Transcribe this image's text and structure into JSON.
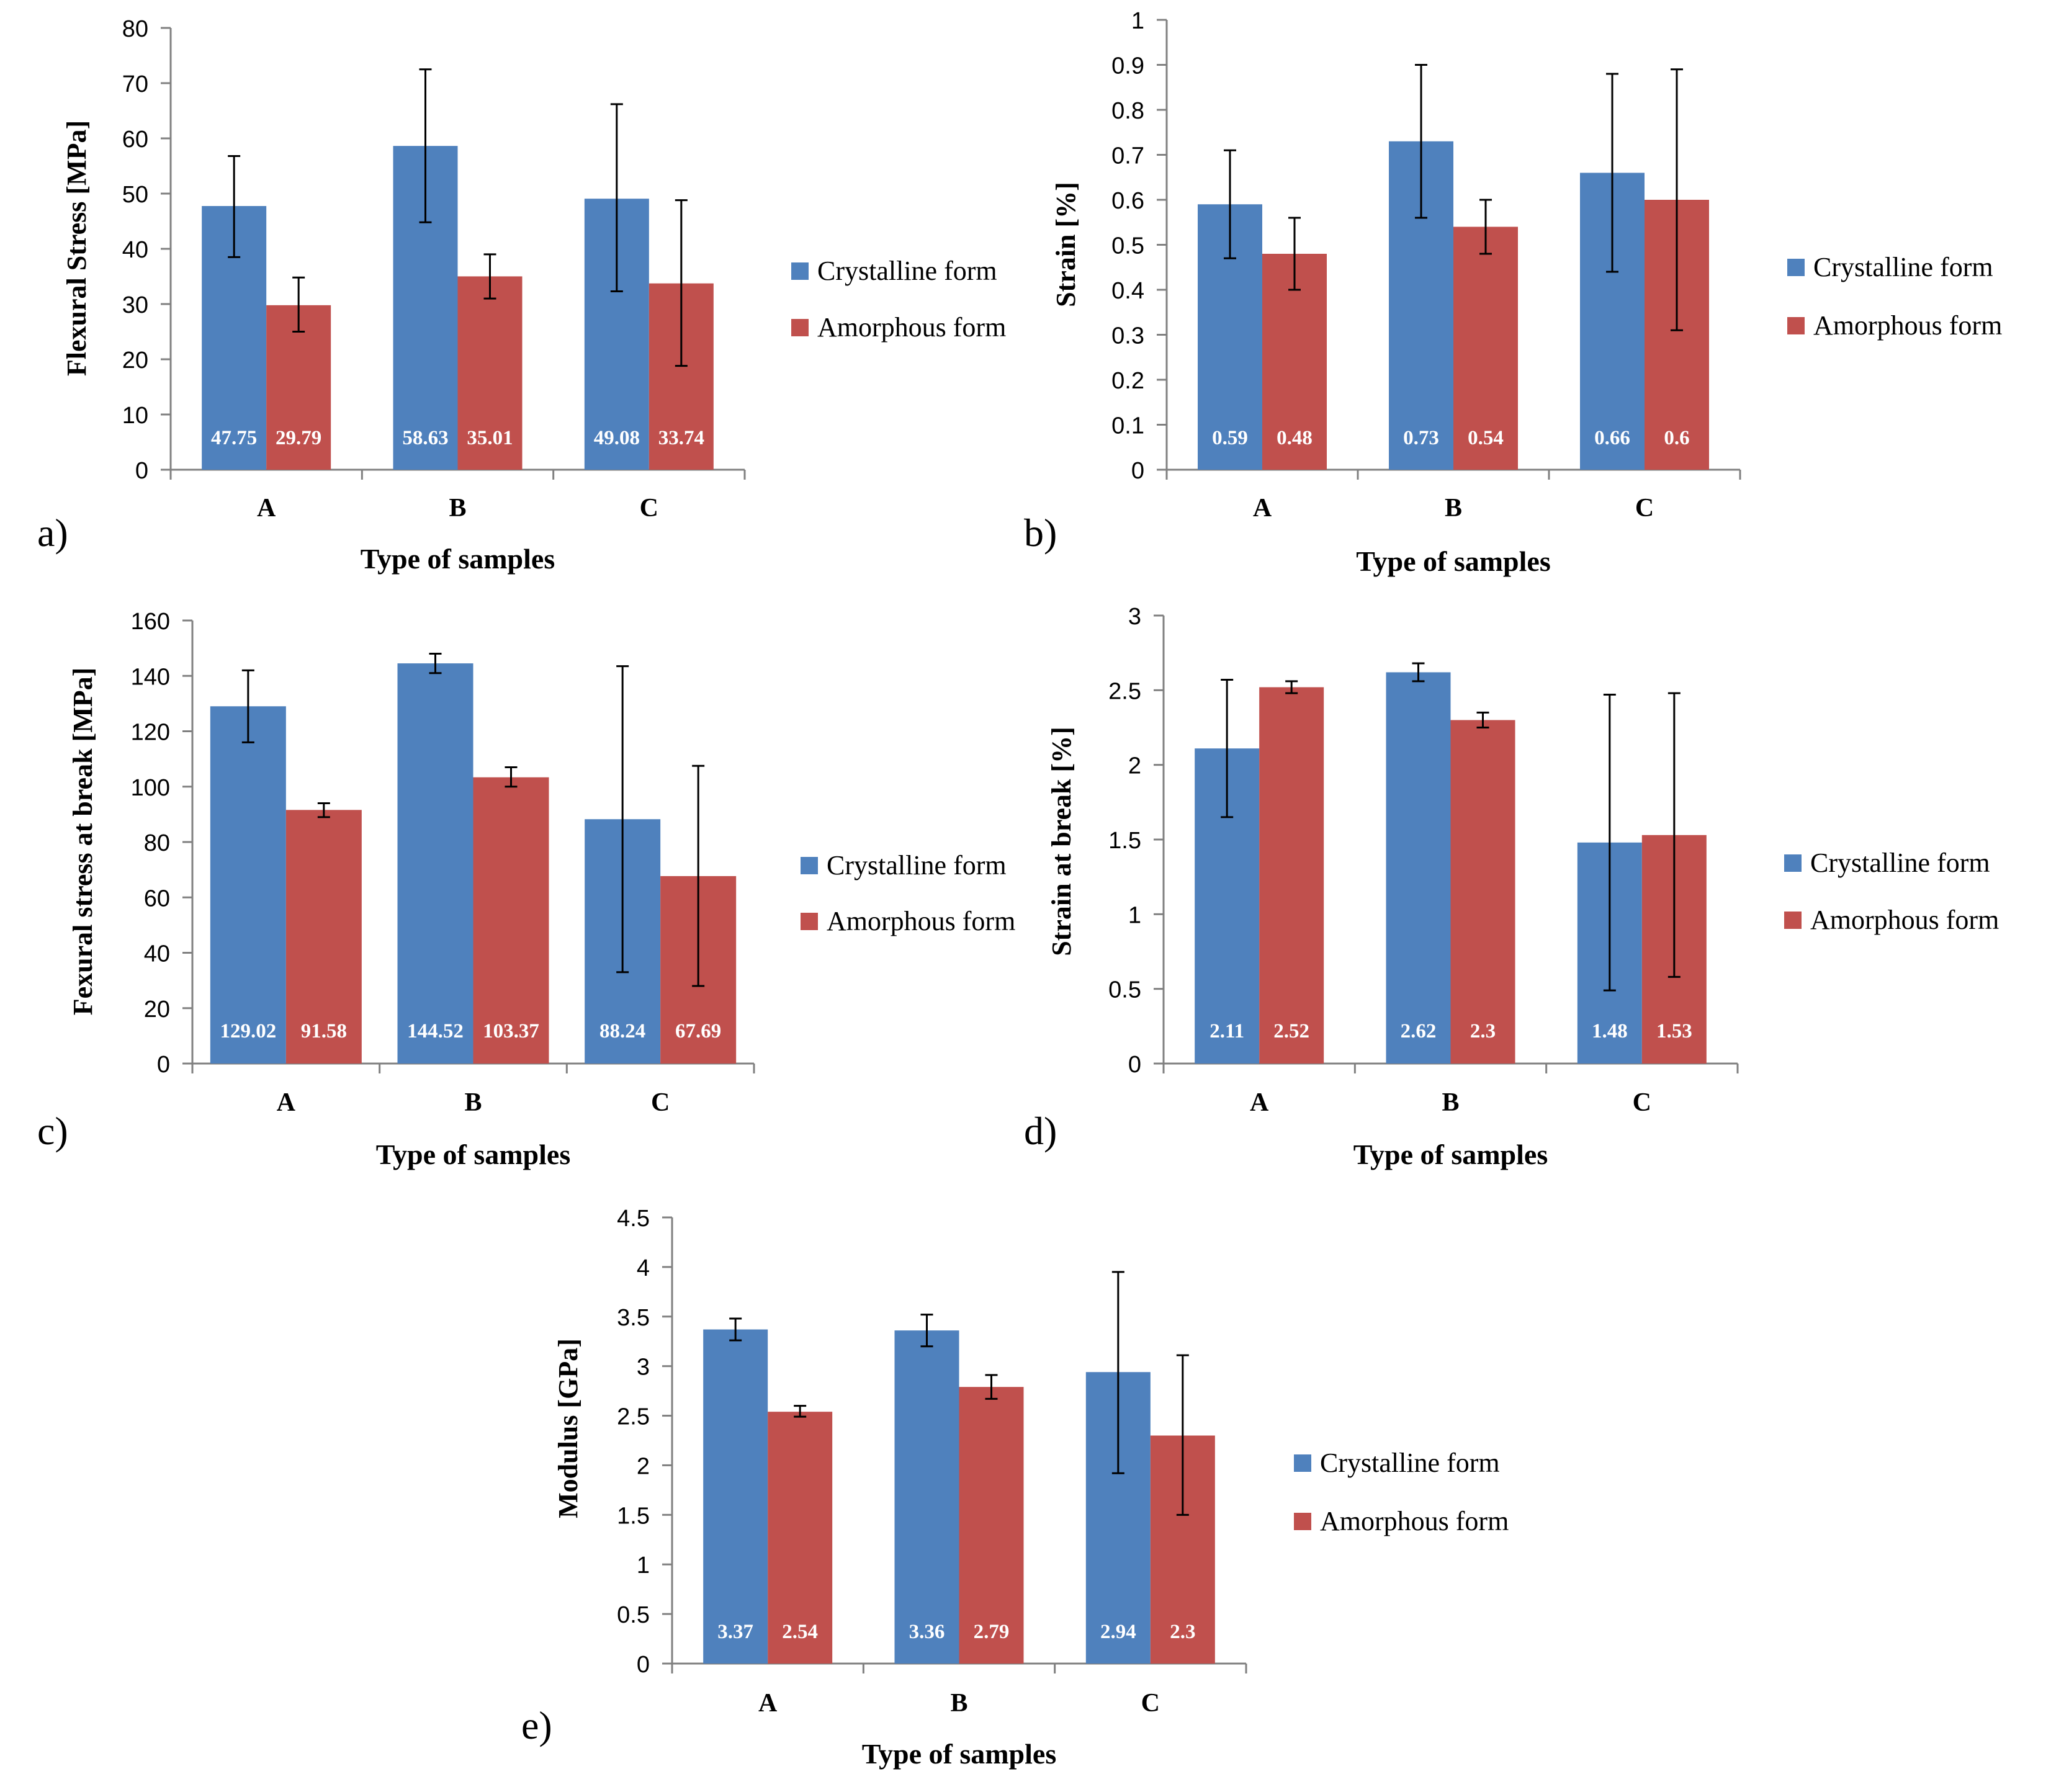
{
  "colors": {
    "crystalline": "#4F81BD",
    "amorphous": "#C0504D",
    "axis": "#808080",
    "text": "#000000",
    "label_inside": "#ffffff"
  },
  "chart_data": [
    {
      "panel_label": "a)",
      "type": "bar",
      "xlabel": "Type of samples",
      "ylabel": "Flexural Stress [MPa]",
      "ylim": [
        0,
        80
      ],
      "yticks": [
        "0",
        "10",
        "20",
        "30",
        "40",
        "50",
        "60",
        "70",
        "80"
      ],
      "grid": false,
      "legend": "right",
      "categories": [
        "A",
        "B",
        "C"
      ],
      "series": [
        {
          "name": "Crystalline form",
          "values": [
            47.75,
            58.63,
            49.08
          ],
          "labels": [
            "47.75",
            "58.63",
            "49.08"
          ],
          "err_low": [
            38.5,
            44.8,
            32.3
          ],
          "err_high": [
            56.8,
            72.5,
            66.2
          ]
        },
        {
          "name": "Amorphous form",
          "values": [
            29.79,
            35.01,
            33.74
          ],
          "labels": [
            "29.79",
            "35.01",
            "33.74"
          ],
          "err_low": [
            25.0,
            31.0,
            18.8
          ],
          "err_high": [
            34.8,
            39.0,
            48.8
          ]
        }
      ]
    },
    {
      "panel_label": "b)",
      "type": "bar",
      "xlabel": "Type of samples",
      "ylabel": "Strain [%]",
      "ylim": [
        0,
        1
      ],
      "yticks": [
        "0",
        "0.1",
        "0.2",
        "0.3",
        "0.4",
        "0.5",
        "0.6",
        "0.7",
        "0.8",
        "0.9",
        "1"
      ],
      "grid": false,
      "legend": "right",
      "categories": [
        "A",
        "B",
        "C"
      ],
      "series": [
        {
          "name": "Crystalline form",
          "values": [
            0.59,
            0.73,
            0.66
          ],
          "labels": [
            "0.59",
            "0.73",
            "0.66"
          ],
          "err_low": [
            0.47,
            0.56,
            0.44
          ],
          "err_high": [
            0.71,
            0.9,
            0.88
          ]
        },
        {
          "name": "Amorphous form",
          "values": [
            0.48,
            0.54,
            0.6
          ],
          "labels": [
            "0.48",
            "0.54",
            "0.6"
          ],
          "err_low": [
            0.4,
            0.48,
            0.31
          ],
          "err_high": [
            0.56,
            0.6,
            0.89
          ]
        }
      ]
    },
    {
      "panel_label": "c)",
      "type": "bar",
      "xlabel": "Type of samples",
      "ylabel": "Fexural stress at break [MPa]",
      "ylim": [
        0,
        160
      ],
      "yticks": [
        "0",
        "20",
        "40",
        "60",
        "80",
        "100",
        "120",
        "140",
        "160"
      ],
      "grid": false,
      "legend": "right",
      "categories": [
        "A",
        "B",
        "C"
      ],
      "series": [
        {
          "name": "Crystalline form",
          "values": [
            129.02,
            144.52,
            88.24
          ],
          "labels": [
            "129.02",
            "144.52",
            "88.24"
          ],
          "err_low": [
            116,
            141,
            33
          ],
          "err_high": [
            142,
            148,
            143.5
          ]
        },
        {
          "name": "Amorphous form",
          "values": [
            91.58,
            103.37,
            67.69
          ],
          "labels": [
            "91.58",
            "103.37",
            "67.69"
          ],
          "err_low": [
            89,
            100,
            28
          ],
          "err_high": [
            94,
            107,
            107.5
          ]
        }
      ]
    },
    {
      "panel_label": "d)",
      "type": "bar",
      "xlabel": "Type of samples",
      "ylabel": "Strain at break [%]",
      "ylim": [
        0,
        3
      ],
      "yticks": [
        "0",
        "0.5",
        "1",
        "1.5",
        "2",
        "2.5",
        "3"
      ],
      "grid": false,
      "legend": "right",
      "categories": [
        "A",
        "B",
        "C"
      ],
      "series": [
        {
          "name": "Crystalline form",
          "values": [
            2.11,
            2.62,
            1.48
          ],
          "labels": [
            "2.11",
            "2.62",
            "1.48"
          ],
          "err_low": [
            1.65,
            2.56,
            0.49
          ],
          "err_high": [
            2.57,
            2.68,
            2.47
          ]
        },
        {
          "name": "Amorphous form",
          "values": [
            2.52,
            2.3,
            1.53
          ],
          "labels": [
            "2.52",
            "2.3",
            "1.53"
          ],
          "err_low": [
            2.48,
            2.25,
            0.58
          ],
          "err_high": [
            2.56,
            2.35,
            2.48
          ]
        }
      ]
    },
    {
      "panel_label": "e)",
      "type": "bar",
      "xlabel": "Type of samples",
      "ylabel": "Modulus [GPa]",
      "ylim": [
        0,
        4.5
      ],
      "yticks": [
        "0",
        "0.5",
        "1",
        "1.5",
        "2",
        "2.5",
        "3",
        "3.5",
        "4",
        "4.5"
      ],
      "grid": false,
      "legend": "right",
      "categories": [
        "A",
        "B",
        "C"
      ],
      "series": [
        {
          "name": "Crystalline form",
          "values": [
            3.37,
            3.36,
            2.94
          ],
          "labels": [
            "3.37",
            "3.36",
            "2.94"
          ],
          "err_low": [
            3.26,
            3.2,
            1.92
          ],
          "err_high": [
            3.48,
            3.52,
            3.95
          ]
        },
        {
          "name": "Amorphous form",
          "values": [
            2.54,
            2.79,
            2.3
          ],
          "labels": [
            "2.54",
            "2.79",
            "2.3"
          ],
          "err_low": [
            2.49,
            2.67,
            1.5
          ],
          "err_high": [
            2.6,
            2.91,
            3.11
          ]
        }
      ]
    }
  ]
}
